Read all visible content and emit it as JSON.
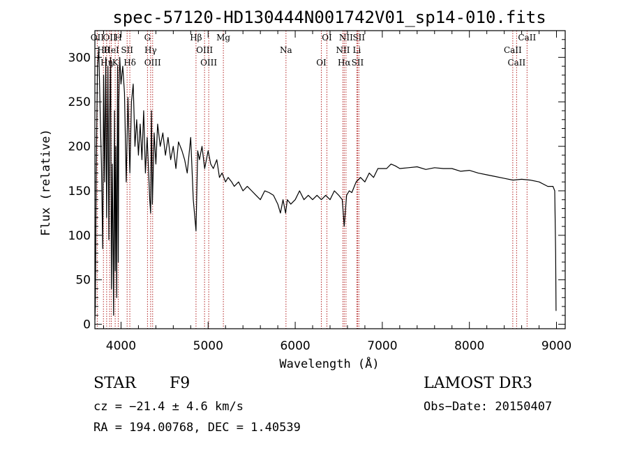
{
  "chart_data": {
    "type": "line",
    "title": "spec-57120-HD130444N001742V01_sp14-010.fits",
    "xlabel": "Wavelength (Å)",
    "ylabel": "Flux (relative)",
    "xlim": [
      3700,
      9100
    ],
    "ylim": [
      -5,
      330
    ],
    "xticks": [
      4000,
      5000,
      6000,
      7000,
      8000,
      9000
    ],
    "yticks": [
      0,
      50,
      100,
      150,
      200,
      250,
      300
    ],
    "series": [
      {
        "name": "flux",
        "x": [
          3700,
          3705,
          3715,
          3730,
          3745,
          3760,
          3775,
          3790,
          3800,
          3812,
          3825,
          3835,
          3850,
          3860,
          3870,
          3880,
          3890,
          3900,
          3915,
          3925,
          3933,
          3940,
          3950,
          3960,
          3968,
          3975,
          3985,
          4000,
          4020,
          4040,
          4060,
          4080,
          4101,
          4120,
          4140,
          4160,
          4180,
          4200,
          4220,
          4240,
          4260,
          4280,
          4300,
          4315,
          4330,
          4340,
          4350,
          4360,
          4380,
          4400,
          4420,
          4450,
          4480,
          4510,
          4540,
          4570,
          4600,
          4630,
          4660,
          4700,
          4730,
          4760,
          4800,
          4830,
          4861,
          4880,
          4900,
          4930,
          4960,
          5000,
          5030,
          5060,
          5100,
          5130,
          5160,
          5200,
          5230,
          5270,
          5300,
          5350,
          5400,
          5450,
          5500,
          5550,
          5600,
          5650,
          5700,
          5750,
          5800,
          5830,
          5860,
          5890,
          5910,
          5950,
          6000,
          6050,
          6100,
          6150,
          6200,
          6250,
          6300,
          6350,
          6400,
          6450,
          6500,
          6540,
          6563,
          6590,
          6620,
          6650,
          6700,
          6750,
          6800,
          6850,
          6900,
          6950,
          7000,
          7050,
          7100,
          7150,
          7200,
          7300,
          7400,
          7500,
          7600,
          7700,
          7800,
          7900,
          8000,
          8100,
          8200,
          8300,
          8400,
          8500,
          8600,
          8700,
          8800,
          8900,
          8960,
          8980,
          8990,
          8995
        ],
        "values": [
          5,
          20,
          170,
          290,
          310,
          240,
          180,
          85,
          280,
          160,
          300,
          120,
          290,
          95,
          230,
          300,
          40,
          180,
          10,
          240,
          60,
          200,
          30,
          290,
          70,
          250,
          300,
          270,
          290,
          260,
          160,
          255,
          170,
          250,
          270,
          200,
          230,
          190,
          225,
          185,
          240,
          170,
          210,
          175,
          140,
          125,
          240,
          135,
          215,
          180,
          225,
          200,
          215,
          190,
          210,
          185,
          200,
          175,
          205,
          195,
          185,
          170,
          210,
          140,
          105,
          195,
          185,
          200,
          175,
          195,
          180,
          175,
          185,
          165,
          170,
          160,
          165,
          160,
          155,
          160,
          150,
          155,
          150,
          145,
          140,
          150,
          148,
          145,
          135,
          125,
          140,
          125,
          140,
          135,
          140,
          150,
          140,
          145,
          140,
          145,
          140,
          145,
          140,
          150,
          145,
          140,
          110,
          145,
          150,
          148,
          160,
          165,
          160,
          170,
          165,
          175,
          175,
          175,
          180,
          178,
          175,
          176,
          177,
          174,
          176,
          175,
          175,
          172,
          173,
          170,
          168,
          166,
          164,
          162,
          163,
          162,
          160,
          155,
          155,
          150,
          80,
          15
        ]
      }
    ],
    "spectral_lines": [
      {
        "label": "OII",
        "x": 3727
      },
      {
        "label": "Hθ",
        "x": 3798
      },
      {
        "label": "Hη",
        "x": 3835
      },
      {
        "label": "OII",
        "x": 3869
      },
      {
        "label": "HeI",
        "x": 3889
      },
      {
        "label": "K",
        "x": 3933
      },
      {
        "label": "H",
        "x": 3968
      },
      {
        "label": "SII",
        "x": 4070
      },
      {
        "label": "Hδ",
        "x": 4101
      },
      {
        "label": "G",
        "x": 4304
      },
      {
        "label": "Hγ",
        "x": 4340
      },
      {
        "label": "OIII",
        "x": 4363
      },
      {
        "label": "Hβ",
        "x": 4861
      },
      {
        "label": "OIII",
        "x": 4959
      },
      {
        "label": "OIII",
        "x": 5007
      },
      {
        "label": "Mg",
        "x": 5175
      },
      {
        "label": "Na",
        "x": 5894
      },
      {
        "label": "OI",
        "x": 6300
      },
      {
        "label": "OI",
        "x": 6364
      },
      {
        "label": "NII",
        "x": 6548
      },
      {
        "label": "Hα",
        "x": 6563
      },
      {
        "label": "NII",
        "x": 6583
      },
      {
        "label": "Li",
        "x": 6708
      },
      {
        "label": "SII",
        "x": 6716
      },
      {
        "label": "SII",
        "x": 6731
      },
      {
        "label": "CaII",
        "x": 8498
      },
      {
        "label": "CaII",
        "x": 8542
      },
      {
        "label": "CaII",
        "x": 8662
      }
    ]
  },
  "info": {
    "object_type": "STAR",
    "subclass": "F9",
    "survey": "LAMOST DR3",
    "cz": "cz = −21.4 ± 4.6 km/s",
    "obs_date": "Obs−Date: 20150407",
    "coords": "RA = 194.00768, DEC =    1.40539"
  },
  "colors": {
    "line_marker": "#b22222",
    "spectrum": "#000000"
  }
}
